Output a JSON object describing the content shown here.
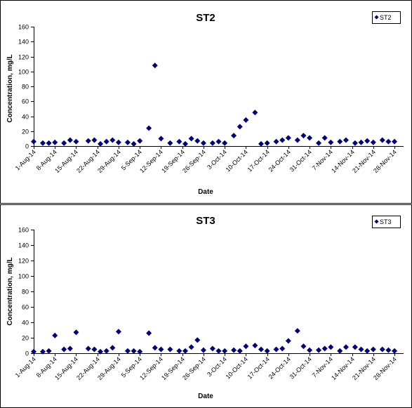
{
  "chart_data": [
    {
      "type": "scatter",
      "title": "ST2",
      "xlabel": "Date",
      "ylabel": "Concentration, mg/L",
      "ylim": [
        0,
        160
      ],
      "yticks": [
        "0",
        "20",
        "40",
        "60",
        "80",
        "100",
        "120",
        "140",
        "160"
      ],
      "xlim": [
        "2014-08-01",
        "2014-12-01"
      ],
      "xtick_labels": [
        "1-Aug-14",
        "8-Aug-14",
        "15-Aug-14",
        "22-Aug-14",
        "29-Aug-14",
        "5-Sep-14",
        "12-Sep-14",
        "19-Sep-14",
        "26-Sep-14",
        "3-Oct-14",
        "10-Oct-14",
        "17-Oct-14",
        "24-Oct-14",
        "31-Oct-14",
        "7-Nov-14",
        "14-Nov-14",
        "21-Nov-14",
        "28-Nov-14"
      ],
      "grid": false,
      "legend_position": "top-right",
      "marker_color": "#000080",
      "series": [
        {
          "name": "ST2",
          "points": [
            [
              "2014-08-01",
              6
            ],
            [
              "2014-08-04",
              4
            ],
            [
              "2014-08-06",
              4
            ],
            [
              "2014-08-08",
              5
            ],
            [
              "2014-08-11",
              4
            ],
            [
              "2014-08-13",
              8
            ],
            [
              "2014-08-15",
              6
            ],
            [
              "2014-08-19",
              7
            ],
            [
              "2014-08-21",
              8
            ],
            [
              "2014-08-23",
              3
            ],
            [
              "2014-08-25",
              6
            ],
            [
              "2014-08-27",
              8
            ],
            [
              "2014-08-29",
              5
            ],
            [
              "2014-09-01",
              5
            ],
            [
              "2014-09-03",
              3
            ],
            [
              "2014-09-05",
              7
            ],
            [
              "2014-09-08",
              24
            ],
            [
              "2014-09-10",
              108
            ],
            [
              "2014-09-12",
              10
            ],
            [
              "2014-09-15",
              4
            ],
            [
              "2014-09-18",
              6
            ],
            [
              "2014-09-20",
              3
            ],
            [
              "2014-09-22",
              10
            ],
            [
              "2014-09-24",
              7
            ],
            [
              "2014-09-26",
              4
            ],
            [
              "2014-09-29",
              4
            ],
            [
              "2014-10-01",
              6
            ],
            [
              "2014-10-03",
              4
            ],
            [
              "2014-10-06",
              14
            ],
            [
              "2014-10-08",
              26
            ],
            [
              "2014-10-10",
              35
            ],
            [
              "2014-10-13",
              45
            ],
            [
              "2014-10-15",
              3
            ],
            [
              "2014-10-17",
              4
            ],
            [
              "2014-10-20",
              6
            ],
            [
              "2014-10-22",
              8
            ],
            [
              "2014-10-24",
              11
            ],
            [
              "2014-10-27",
              8
            ],
            [
              "2014-10-29",
              14
            ],
            [
              "2014-10-31",
              11
            ],
            [
              "2014-11-03",
              4
            ],
            [
              "2014-11-05",
              11
            ],
            [
              "2014-11-07",
              5
            ],
            [
              "2014-11-10",
              6
            ],
            [
              "2014-11-12",
              8
            ],
            [
              "2014-11-15",
              4
            ],
            [
              "2014-11-17",
              5
            ],
            [
              "2014-11-19",
              7
            ],
            [
              "2014-11-21",
              5
            ],
            [
              "2014-11-24",
              8
            ],
            [
              "2014-11-26",
              6
            ],
            [
              "2014-11-28",
              6
            ]
          ]
        }
      ]
    },
    {
      "type": "scatter",
      "title": "ST3",
      "xlabel": "Date",
      "ylabel": "Concentration, mg/L",
      "ylim": [
        0,
        160
      ],
      "yticks": [
        "0",
        "20",
        "40",
        "60",
        "80",
        "100",
        "120",
        "140",
        "160"
      ],
      "xlim": [
        "2014-08-01",
        "2014-12-01"
      ],
      "xtick_labels": [
        "1-Aug-14",
        "8-Aug-14",
        "15-Aug-14",
        "22-Aug-14",
        "29-Aug-14",
        "5-Sep-14",
        "12-Sep-14",
        "19-Sep-14",
        "26-Sep-14",
        "3-Oct-14",
        "10-Oct-14",
        "17-Oct-14",
        "24-Oct-14",
        "31-Oct-14",
        "7-Nov-14",
        "14-Nov-14",
        "21-Nov-14",
        "28-Nov-14"
      ],
      "grid": false,
      "legend_position": "top-right",
      "marker_color": "#000080",
      "series": [
        {
          "name": "ST3",
          "points": [
            [
              "2014-08-01",
              2
            ],
            [
              "2014-08-04",
              2
            ],
            [
              "2014-08-06",
              3
            ],
            [
              "2014-08-08",
              23
            ],
            [
              "2014-08-11",
              5
            ],
            [
              "2014-08-13",
              6
            ],
            [
              "2014-08-15",
              27
            ],
            [
              "2014-08-19",
              6
            ],
            [
              "2014-08-21",
              5
            ],
            [
              "2014-08-23",
              2
            ],
            [
              "2014-08-25",
              3
            ],
            [
              "2014-08-27",
              7
            ],
            [
              "2014-08-29",
              28
            ],
            [
              "2014-09-01",
              3
            ],
            [
              "2014-09-03",
              3
            ],
            [
              "2014-09-05",
              2
            ],
            [
              "2014-09-08",
              26
            ],
            [
              "2014-09-10",
              7
            ],
            [
              "2014-09-12",
              5
            ],
            [
              "2014-09-15",
              5
            ],
            [
              "2014-09-18",
              3
            ],
            [
              "2014-09-20",
              3
            ],
            [
              "2014-09-22",
              8
            ],
            [
              "2014-09-24",
              17
            ],
            [
              "2014-09-26",
              4
            ],
            [
              "2014-09-29",
              6
            ],
            [
              "2014-10-01",
              3
            ],
            [
              "2014-10-03",
              3
            ],
            [
              "2014-10-06",
              4
            ],
            [
              "2014-10-08",
              3
            ],
            [
              "2014-10-10",
              9
            ],
            [
              "2014-10-13",
              10
            ],
            [
              "2014-10-15",
              5
            ],
            [
              "2014-10-17",
              3
            ],
            [
              "2014-10-20",
              5
            ],
            [
              "2014-10-22",
              6
            ],
            [
              "2014-10-24",
              16
            ],
            [
              "2014-10-27",
              29
            ],
            [
              "2014-10-29",
              9
            ],
            [
              "2014-10-31",
              4
            ],
            [
              "2014-11-03",
              4
            ],
            [
              "2014-11-05",
              6
            ],
            [
              "2014-11-07",
              8
            ],
            [
              "2014-11-10",
              3
            ],
            [
              "2014-11-12",
              8
            ],
            [
              "2014-11-15",
              8
            ],
            [
              "2014-11-17",
              5
            ],
            [
              "2014-11-19",
              3
            ],
            [
              "2014-11-21",
              5
            ],
            [
              "2014-11-24",
              5
            ],
            [
              "2014-11-26",
              4
            ],
            [
              "2014-11-28",
              3
            ]
          ]
        }
      ]
    }
  ]
}
